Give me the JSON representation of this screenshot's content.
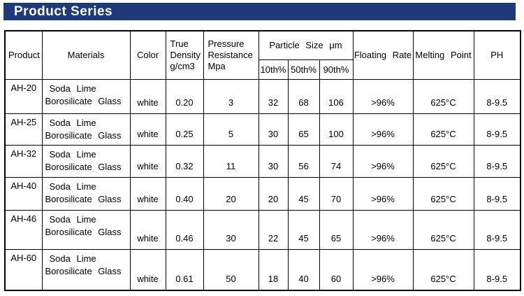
{
  "banner": {
    "title": "Product Series",
    "bg_color": "#1e3a78",
    "text_color": "#ffffff"
  },
  "table": {
    "headers": {
      "product": "Product",
      "materials": "Materials",
      "color": "Color",
      "true_density": [
        "True",
        "Density",
        "g/cm3"
      ],
      "pressure_resistance": [
        "Pressure",
        "Resistance",
        "Mpa"
      ],
      "particle_size": "Particle Size μm",
      "particle_sub": [
        "10th%",
        "50th%",
        "90th%"
      ],
      "floating_rate": "Floating Rate",
      "melting_point": "Melting Point",
      "ph": "PH"
    },
    "rows": [
      {
        "product": "AH-20",
        "materials": [
          "Soda Lime",
          "Borosilicate Glass"
        ],
        "color": "white",
        "density": "0.20",
        "pressure": "3",
        "p10": "32",
        "p50": "68",
        "p90": "106",
        "floating": ">96%",
        "melting": "625°C",
        "ph": "8-9.5"
      },
      {
        "product": "AH-25",
        "materials": [
          "Soda Lime",
          "Borosilicate Glass"
        ],
        "color": "white",
        "density": "0.25",
        "pressure": "5",
        "p10": "30",
        "p50": "65",
        "p90": "100",
        "floating": ">96%",
        "melting": "625°C",
        "ph": "8-9.5"
      },
      {
        "product": "AH-32",
        "materials": [
          "Soda Lime",
          "Borosilicate Glass"
        ],
        "color": "white",
        "density": "0.32",
        "pressure": "11",
        "p10": "30",
        "p50": "56",
        "p90": "74",
        "floating": ">96%",
        "melting": "625°C",
        "ph": "8-9.5"
      },
      {
        "product": "AH-40",
        "materials": [
          "Soda Lime",
          "Borosilicate Glass"
        ],
        "color": "white",
        "density": "0.40",
        "pressure": "20",
        "p10": "20",
        "p50": "45",
        "p90": "70",
        "floating": ">96%",
        "melting": "625°C",
        "ph": "8-9.5"
      },
      {
        "product": "AH-46",
        "materials": [
          "Soda Lime",
          "Borosilicate Glass"
        ],
        "color": "white",
        "density": "0.46",
        "pressure": "30",
        "p10": "22",
        "p50": "45",
        "p90": "65",
        "floating": ">96%",
        "melting": "625°C",
        "ph": "8-9.5"
      },
      {
        "product": "AH-60",
        "materials": [
          "Soda Lime",
          "Borosilicate Glass"
        ],
        "color": "white",
        "density": "0.61",
        "pressure": "50",
        "p10": "18",
        "p50": "40",
        "p90": "60",
        "floating": ">96%",
        "melting": "625°C",
        "ph": "8-9.5"
      }
    ]
  }
}
